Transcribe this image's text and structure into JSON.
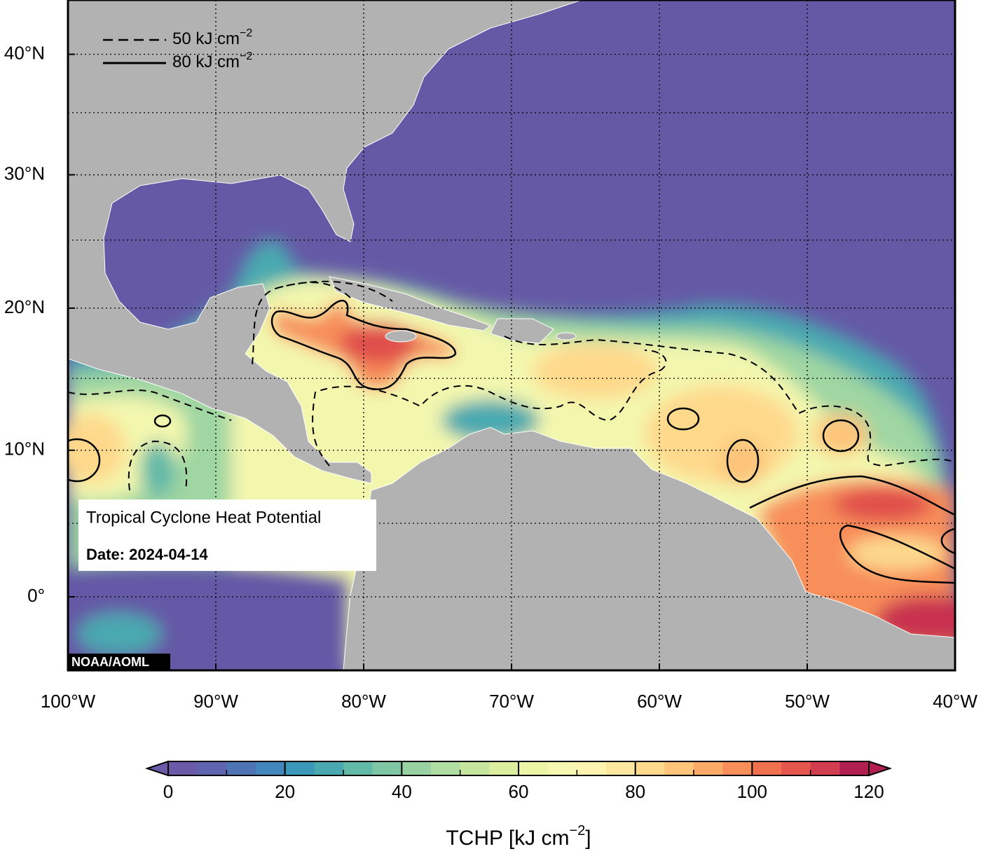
{
  "map": {
    "legend": [
      {
        "label": "50 kJ cm",
        "exponent": "−2",
        "style": "dashed"
      },
      {
        "label": "80 kJ cm",
        "exponent": "−2",
        "style": "solid"
      }
    ],
    "info_box": {
      "title": "Tropical Cyclone Heat Potential",
      "date": "Date: 2024-04-14"
    },
    "credit": "NOAA/AOML",
    "xlim": [
      -100,
      -40
    ],
    "ylim": [
      -5,
      45
    ],
    "lon_ticks": [
      {
        "value": -100,
        "label": "100°W"
      },
      {
        "value": -90,
        "label": "90°W"
      },
      {
        "value": -80,
        "label": "80°W"
      },
      {
        "value": -70,
        "label": "70°W"
      },
      {
        "value": -60,
        "label": "60°W"
      },
      {
        "value": -50,
        "label": "50°W"
      },
      {
        "value": -40,
        "label": "40°W"
      }
    ],
    "lat_ticks": [
      {
        "value": 0,
        "label": "0°"
      },
      {
        "value": 10,
        "label": "10°N"
      },
      {
        "value": 20,
        "label": "20°N"
      },
      {
        "value": 30,
        "label": "30°N"
      },
      {
        "value": 40,
        "label": "40°N"
      }
    ],
    "colorbar": {
      "range": [
        0,
        120
      ],
      "ticks": [
        0,
        20,
        40,
        60,
        80,
        100,
        120
      ],
      "colors": [
        "#6a5aa8",
        "#5f64b0",
        "#4f74b6",
        "#4286bb",
        "#3b98b9",
        "#4aa9b0",
        "#62b9a8",
        "#7ec6a4",
        "#98d2a3",
        "#b0dda2",
        "#c6e69f",
        "#dcef9f",
        "#ecf5a5",
        "#f6f8b2",
        "#fdf2b0",
        "#fee8a0",
        "#fed98c",
        "#fdc47a",
        "#fcaa68",
        "#f88e5a",
        "#f07150",
        "#e5564c",
        "#d23d50",
        "#b01f4f"
      ],
      "label": "TCHP [kJ cm",
      "exponent": "−2",
      "label_end": "]"
    }
  }
}
